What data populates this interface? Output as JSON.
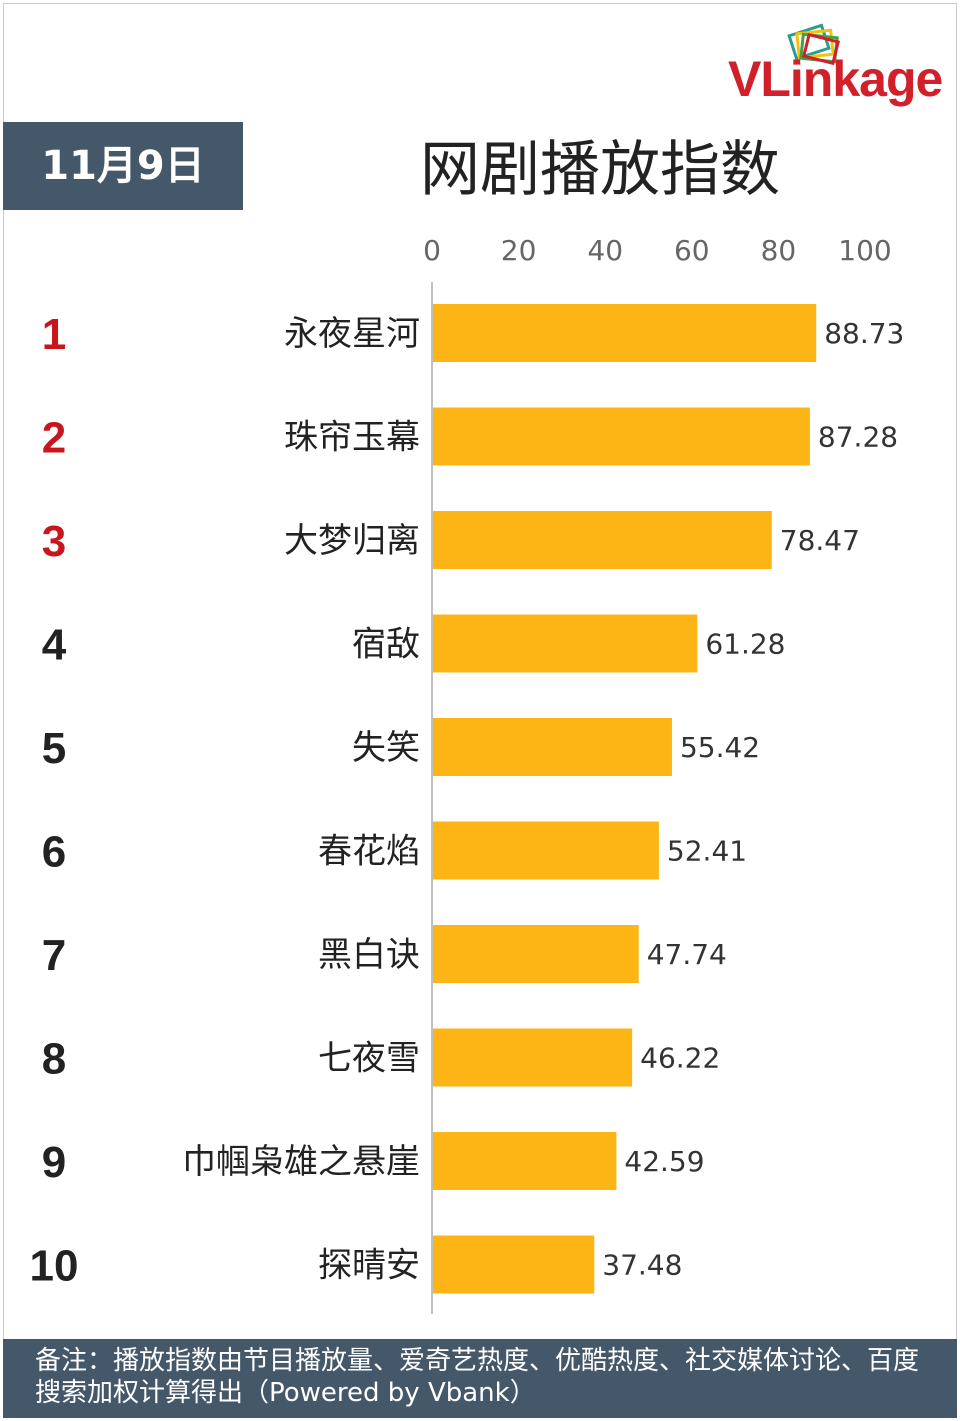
{
  "brand": {
    "logo_text": "VLinkage",
    "logo_icon": "stacked-cards-icon",
    "colors": {
      "red": "#d1202a",
      "teal": "#2a9d8f",
      "yellow": "#f4c20d",
      "green": "#43a047"
    }
  },
  "header": {
    "date": "11月9日",
    "title": "网剧播放指数"
  },
  "chart_data": {
    "type": "bar",
    "orientation": "horizontal",
    "title": "网剧播放指数",
    "xlim": [
      0,
      100
    ],
    "x_ticks": [
      "0",
      "20",
      "40",
      "60",
      "80",
      "100"
    ],
    "ranks": [
      "1",
      "2",
      "3",
      "4",
      "5",
      "6",
      "7",
      "8",
      "9",
      "10"
    ],
    "categories": [
      "永夜星河",
      "珠帘玉幕",
      "大梦归离",
      "宿敌",
      "失笑",
      "春花焰",
      "黑白诀",
      "七夜雪",
      "巾帼枭雄之悬崖",
      "探晴安"
    ],
    "values": [
      88.73,
      87.28,
      78.47,
      61.28,
      55.42,
      52.41,
      47.74,
      46.22,
      42.59,
      37.48
    ],
    "value_labels": [
      "88.73",
      "87.28",
      "78.47",
      "61.28",
      "55.42",
      "52.41",
      "47.74",
      "46.22",
      "42.59",
      "37.48"
    ],
    "bar_color": "#fdb515",
    "top_rank_color": "#c8161d",
    "rank_color": "#222222",
    "grid": false,
    "legend": "none"
  },
  "footer": {
    "note": "备注：播放指数由节目播放量、爱奇艺热度、优酷热度、社交媒体讨论、百度搜索加权计算得出（Powered by Vbank）"
  }
}
